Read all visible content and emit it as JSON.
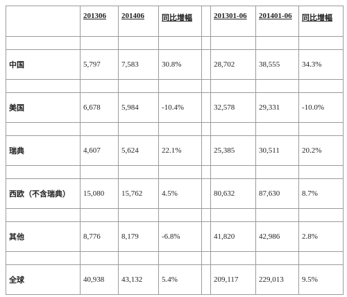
{
  "header": {
    "columns": [
      "201306",
      "201406",
      "同比增幅",
      "201301-06",
      "201401-06",
      "同比增幅"
    ]
  },
  "rows": [
    {
      "label": "中国",
      "cells": [
        "5,797",
        "7,583",
        "30.8%",
        "28,702",
        "38,555",
        "34.3%"
      ]
    },
    {
      "label": "美国",
      "cells": [
        "6,678",
        "5,984",
        "-10.4%",
        "32,578",
        "29,331",
        "-10.0%"
      ]
    },
    {
      "label": "瑞典",
      "cells": [
        "4,607",
        "5,624",
        "22.1%",
        "25,385",
        "30,511",
        "20.2%"
      ]
    },
    {
      "label": "西欧（不含瑞典）",
      "cells": [
        "15,080",
        "15,762",
        "4.5%",
        "80,632",
        "87,630",
        "8.7%"
      ]
    },
    {
      "label": "其他",
      "cells": [
        "8,776",
        "8,179",
        "-6.8%",
        "41,820",
        "42,986",
        "2.8%"
      ]
    },
    {
      "label": "全球",
      "cells": [
        "40,938",
        "43,132",
        "5.4%",
        "209,117",
        "229,013",
        "9.5%"
      ]
    }
  ]
}
